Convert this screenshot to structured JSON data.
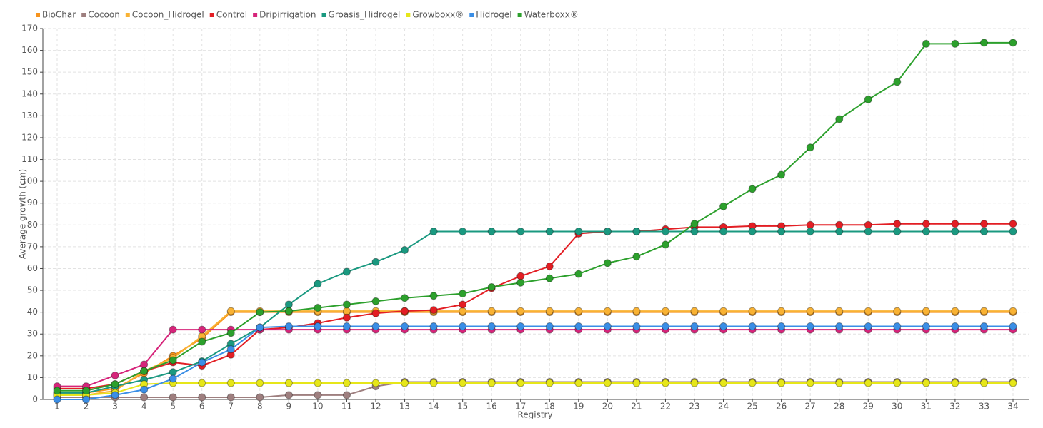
{
  "chart_data": {
    "type": "line",
    "y_label": "Average growth (cm)",
    "x_label": "Registry",
    "categories": [
      "1",
      "2",
      "3",
      "4",
      "5",
      "6",
      "7",
      "8",
      "9",
      "10",
      "11",
      "12",
      "13",
      "14",
      "15",
      "16",
      "17",
      "18",
      "19",
      "20",
      "21",
      "22",
      "23",
      "24",
      "25",
      "26",
      "27",
      "28",
      "29",
      "30",
      "31",
      "32",
      "33",
      "34"
    ],
    "ylim": [
      0,
      170
    ],
    "yticks": [
      0,
      10,
      20,
      30,
      40,
      50,
      60,
      70,
      80,
      90,
      100,
      110,
      120,
      130,
      140,
      150,
      160,
      170
    ],
    "grid": true,
    "legend": "top-left",
    "series": [
      {
        "name": "BioChar",
        "color": "#f7941d",
        "values": [
          3,
          3,
          5,
          12,
          20,
          28,
          40,
          40,
          40,
          40,
          40,
          40,
          40,
          40,
          40,
          40,
          40,
          40,
          40,
          40,
          40,
          40,
          40,
          40,
          40,
          40,
          40,
          40,
          40,
          40,
          40,
          40,
          40,
          40
        ]
      },
      {
        "name": "Cocoon",
        "color": "#9e7f7f",
        "values": [
          1,
          1,
          1,
          1,
          1,
          1,
          1,
          1,
          2,
          2,
          2,
          6,
          8,
          8,
          8,
          8,
          8,
          8,
          8,
          8,
          8,
          8,
          8,
          8,
          8,
          8,
          8,
          8,
          8,
          8,
          8,
          8,
          8,
          8
        ]
      },
      {
        "name": "Cocoon_Hidrogel",
        "color": "#f9b233",
        "values": [
          2,
          2,
          4,
          13,
          19,
          29,
          40.5,
          40.5,
          40.5,
          40.5,
          40.5,
          40.5,
          40.5,
          40.5,
          40.5,
          40.5,
          40.5,
          40.5,
          40.5,
          40.5,
          40.5,
          40.5,
          40.5,
          40.5,
          40.5,
          40.5,
          40.5,
          40.5,
          40.5,
          40.5,
          40.5,
          40.5,
          40.5,
          40.5
        ]
      },
      {
        "name": "Control",
        "color": "#e31e24",
        "values": [
          5,
          5,
          7,
          13,
          17,
          15.5,
          20.5,
          32,
          33,
          35,
          37.5,
          39.5,
          40.5,
          41,
          43.5,
          51,
          56.5,
          61,
          76,
          77,
          77,
          78,
          79,
          79,
          79.5,
          79.5,
          80,
          80,
          80,
          80.5,
          80.5,
          80.5,
          80.5,
          80.5
        ]
      },
      {
        "name": "Dripirrigation",
        "color": "#d6247a",
        "values": [
          6,
          6,
          11,
          16,
          32,
          32,
          32,
          32,
          32,
          32,
          32,
          32,
          32,
          32,
          32,
          32,
          32,
          32,
          32,
          32,
          32,
          32,
          32,
          32,
          32,
          32,
          32,
          32,
          32,
          32,
          32,
          32,
          32,
          32
        ]
      },
      {
        "name": "Groasis_Hidrogel",
        "color": "#1a9980",
        "values": [
          3,
          3,
          6,
          9,
          12.5,
          17.5,
          25.5,
          33,
          43.5,
          53,
          58.5,
          63,
          68.5,
          77,
          77,
          77,
          77,
          77,
          77,
          77,
          77,
          77,
          77,
          77,
          77,
          77,
          77,
          77,
          77,
          77,
          77,
          77,
          77,
          77
        ]
      },
      {
        "name": "Growboxx®",
        "color": "#e6e619",
        "values": [
          2,
          2,
          3,
          7,
          7.5,
          7.5,
          7.5,
          7.5,
          7.5,
          7.5,
          7.5,
          7.5,
          7.5,
          7.5,
          7.5,
          7.5,
          7.5,
          7.5,
          7.5,
          7.5,
          7.5,
          7.5,
          7.5,
          7.5,
          7.5,
          7.5,
          7.5,
          7.5,
          7.5,
          7.5,
          7.5,
          7.5,
          7.5,
          7.5
        ]
      },
      {
        "name": "Hidrogel",
        "color": "#3a8ee6",
        "values": [
          0,
          0,
          2,
          4.5,
          9.5,
          17,
          23,
          33,
          33.5,
          33.5,
          33.5,
          33.5,
          33.5,
          33.5,
          33.5,
          33.5,
          33.5,
          33.5,
          33.5,
          33.5,
          33.5,
          33.5,
          33.5,
          33.5,
          33.5,
          33.5,
          33.5,
          33.5,
          33.5,
          33.5,
          33.5,
          33.5,
          33.5,
          33.5
        ]
      },
      {
        "name": "Waterboxx®",
        "color": "#2ca02c",
        "values": [
          4,
          4,
          7,
          13,
          18,
          26.5,
          30.5,
          40,
          40.5,
          42,
          43.5,
          45,
          46.5,
          47.5,
          48.5,
          51.5,
          53.5,
          55.5,
          57.5,
          62.5,
          65.5,
          71,
          80.5,
          88.5,
          96.5,
          103,
          115.5,
          128.5,
          137.5,
          145.5,
          163,
          163,
          163.5,
          163.5
        ]
      }
    ]
  }
}
